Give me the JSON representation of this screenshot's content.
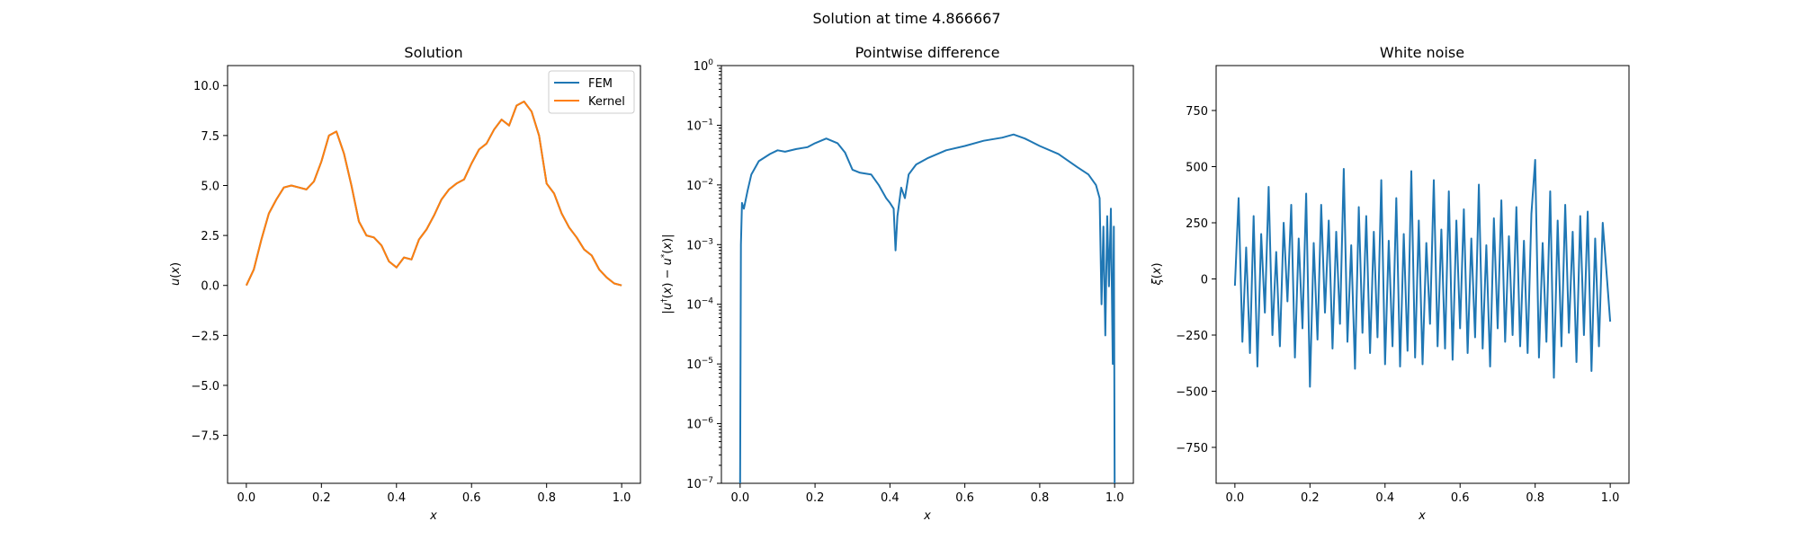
{
  "suptitle": "Solution at time 4.866667",
  "colors": {
    "fem": "#1f77b4",
    "kernel": "#ff7f0e",
    "diff": "#1f77b4",
    "noise": "#1f77b4"
  },
  "chart_data": [
    {
      "type": "line",
      "title": "Solution",
      "xlabel": "x",
      "ylabel": "u(x)",
      "xlim": [
        -0.05,
        1.05
      ],
      "ylim": [
        -9.9,
        11.0
      ],
      "xticks": [
        0.0,
        0.2,
        0.4,
        0.6,
        0.8,
        1.0
      ],
      "xtick_labels": [
        "0.0",
        "0.2",
        "0.4",
        "0.6",
        "0.8",
        "1.0"
      ],
      "yticks": [
        -7.5,
        -5.0,
        -2.5,
        0.0,
        2.5,
        5.0,
        7.5,
        10.0
      ],
      "ytick_labels": [
        "−7.5",
        "−5.0",
        "−2.5",
        "0.0",
        "2.5",
        "5.0",
        "7.5",
        "10.0"
      ],
      "legend_position": "top-right",
      "x": [
        0.0,
        0.02,
        0.04,
        0.06,
        0.08,
        0.1,
        0.12,
        0.14,
        0.16,
        0.18,
        0.2,
        0.22,
        0.24,
        0.26,
        0.28,
        0.3,
        0.32,
        0.34,
        0.36,
        0.38,
        0.4,
        0.42,
        0.44,
        0.46,
        0.48,
        0.5,
        0.52,
        0.54,
        0.56,
        0.58,
        0.6,
        0.62,
        0.64,
        0.66,
        0.68,
        0.7,
        0.72,
        0.74,
        0.76,
        0.78,
        0.8,
        0.82,
        0.84,
        0.86,
        0.88,
        0.9,
        0.92,
        0.94,
        0.96,
        0.98,
        1.0
      ],
      "series": [
        {
          "name": "FEM",
          "values": [
            0.0,
            0.8,
            2.3,
            3.6,
            4.3,
            4.9,
            5.0,
            4.9,
            4.8,
            5.2,
            6.2,
            7.5,
            7.7,
            6.6,
            5.0,
            3.2,
            2.5,
            2.4,
            2.0,
            1.2,
            0.9,
            1.4,
            1.3,
            2.3,
            2.8,
            3.5,
            4.3,
            4.8,
            5.1,
            5.3,
            6.1,
            6.8,
            7.1,
            7.8,
            8.3,
            8.0,
            9.0,
            9.2,
            8.7,
            7.5,
            5.1,
            4.6,
            3.6,
            2.9,
            2.4,
            1.8,
            1.5,
            0.8,
            0.4,
            0.1,
            0.0
          ]
        },
        {
          "name": "Kernel",
          "values": [
            0.0,
            0.8,
            2.3,
            3.6,
            4.3,
            4.9,
            5.0,
            4.9,
            4.8,
            5.2,
            6.2,
            7.5,
            7.7,
            6.6,
            5.0,
            3.2,
            2.5,
            2.4,
            2.0,
            1.2,
            0.9,
            1.4,
            1.3,
            2.3,
            2.8,
            3.5,
            4.3,
            4.8,
            5.1,
            5.3,
            6.1,
            6.8,
            7.1,
            7.8,
            8.3,
            8.0,
            9.0,
            9.2,
            8.7,
            7.5,
            5.1,
            4.6,
            3.6,
            2.9,
            2.4,
            1.8,
            1.5,
            0.8,
            0.4,
            0.1,
            0.0
          ]
        }
      ]
    },
    {
      "type": "line",
      "title": "Pointwise difference",
      "xlabel": "x",
      "ylabel": "|u†(x) − u*(x)|",
      "yscale": "log",
      "xlim": [
        -0.05,
        1.05
      ],
      "ylim": [
        1e-07,
        1
      ],
      "xticks": [
        0.0,
        0.2,
        0.4,
        0.6,
        0.8,
        1.0
      ],
      "xtick_labels": [
        "0.0",
        "0.2",
        "0.4",
        "0.6",
        "0.8",
        "1.0"
      ],
      "yticks": [
        1e-07,
        1e-06,
        1e-05,
        0.0001,
        0.001,
        0.01,
        0.1,
        1
      ],
      "ytick_labels": [
        {
          "base": "10",
          "exp": "−7"
        },
        {
          "base": "10",
          "exp": "−6"
        },
        {
          "base": "10",
          "exp": "−5"
        },
        {
          "base": "10",
          "exp": "−4"
        },
        {
          "base": "10",
          "exp": "−3"
        },
        {
          "base": "10",
          "exp": "−2"
        },
        {
          "base": "10",
          "exp": "−1"
        },
        {
          "base": "10",
          "exp": "0"
        }
      ],
      "x": [
        0.0,
        0.002,
        0.005,
        0.01,
        0.02,
        0.03,
        0.05,
        0.08,
        0.1,
        0.12,
        0.15,
        0.18,
        0.2,
        0.23,
        0.26,
        0.28,
        0.3,
        0.32,
        0.35,
        0.37,
        0.39,
        0.4,
        0.41,
        0.415,
        0.42,
        0.43,
        0.44,
        0.45,
        0.47,
        0.5,
        0.55,
        0.6,
        0.65,
        0.7,
        0.73,
        0.76,
        0.8,
        0.85,
        0.9,
        0.93,
        0.95,
        0.96,
        0.965,
        0.97,
        0.975,
        0.98,
        0.985,
        0.99,
        0.995,
        0.998,
        1.0
      ],
      "series": [
        {
          "name": "",
          "values": [
            1e-07,
            0.001,
            0.005,
            0.004,
            0.008,
            0.015,
            0.025,
            0.033,
            0.038,
            0.036,
            0.04,
            0.043,
            0.05,
            0.06,
            0.05,
            0.035,
            0.018,
            0.016,
            0.015,
            0.01,
            0.006,
            0.005,
            0.004,
            0.0008,
            0.003,
            0.009,
            0.006,
            0.015,
            0.022,
            0.028,
            0.038,
            0.045,
            0.055,
            0.062,
            0.07,
            0.06,
            0.045,
            0.033,
            0.02,
            0.015,
            0.01,
            0.006,
            0.0001,
            0.002,
            3e-05,
            0.003,
            0.0002,
            0.004,
            1e-05,
            0.002,
            1e-07
          ]
        }
      ]
    },
    {
      "type": "line",
      "title": "White noise",
      "xlabel": "x",
      "ylabel": "ξ(x)",
      "xlim": [
        -0.05,
        1.05
      ],
      "ylim": [
        -910,
        950
      ],
      "xticks": [
        0.0,
        0.2,
        0.4,
        0.6,
        0.8,
        1.0
      ],
      "xtick_labels": [
        "0.0",
        "0.2",
        "0.4",
        "0.6",
        "0.8",
        "1.0"
      ],
      "yticks": [
        -750,
        -500,
        -250,
        0,
        250,
        500,
        750
      ],
      "ytick_labels": [
        "−750",
        "−500",
        "−250",
        "0",
        "250",
        "500",
        "750"
      ],
      "x": [
        0.0,
        0.01,
        0.02,
        0.03,
        0.04,
        0.05,
        0.06,
        0.07,
        0.08,
        0.09,
        0.1,
        0.11,
        0.12,
        0.13,
        0.14,
        0.15,
        0.16,
        0.17,
        0.18,
        0.19,
        0.2,
        0.21,
        0.22,
        0.23,
        0.24,
        0.25,
        0.26,
        0.27,
        0.28,
        0.29,
        0.3,
        0.31,
        0.32,
        0.33,
        0.34,
        0.35,
        0.36,
        0.37,
        0.38,
        0.39,
        0.4,
        0.41,
        0.42,
        0.43,
        0.44,
        0.45,
        0.46,
        0.47,
        0.48,
        0.49,
        0.5,
        0.51,
        0.52,
        0.53,
        0.54,
        0.55,
        0.56,
        0.57,
        0.58,
        0.59,
        0.6,
        0.61,
        0.62,
        0.63,
        0.64,
        0.65,
        0.66,
        0.67,
        0.68,
        0.69,
        0.7,
        0.71,
        0.72,
        0.73,
        0.74,
        0.75,
        0.76,
        0.77,
        0.78,
        0.79,
        0.8,
        0.81,
        0.82,
        0.83,
        0.84,
        0.85,
        0.86,
        0.87,
        0.88,
        0.89,
        0.9,
        0.91,
        0.92,
        0.93,
        0.94,
        0.95,
        0.96,
        0.97,
        0.98,
        0.99,
        1.0
      ],
      "series": [
        {
          "name": "",
          "values": [
            -30,
            360,
            -280,
            140,
            -330,
            280,
            -390,
            200,
            -150,
            410,
            -250,
            120,
            -300,
            250,
            -100,
            330,
            -350,
            180,
            -220,
            380,
            -480,
            160,
            -270,
            330,
            -150,
            260,
            -310,
            210,
            -200,
            490,
            -280,
            150,
            -400,
            320,
            -240,
            280,
            -330,
            210,
            -260,
            440,
            -380,
            170,
            -300,
            360,
            -390,
            200,
            -320,
            480,
            -350,
            260,
            -380,
            160,
            -200,
            440,
            -300,
            220,
            -310,
            390,
            -360,
            260,
            -220,
            310,
            -330,
            180,
            -260,
            420,
            -310,
            150,
            -390,
            270,
            -220,
            350,
            -280,
            190,
            -250,
            320,
            -300,
            170,
            -330,
            290,
            530,
            -350,
            160,
            -280,
            390,
            -440,
            260,
            -300,
            330,
            -240,
            210,
            -370,
            280,
            -250,
            300,
            -410,
            180,
            -300,
            250,
            30,
            -190
          ]
        }
      ]
    }
  ]
}
